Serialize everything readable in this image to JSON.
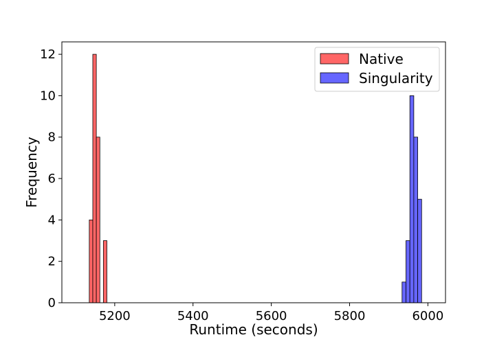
{
  "chart_data": {
    "type": "bar",
    "title": "",
    "xlabel": "Runtime (seconds)",
    "ylabel": "Frequency",
    "xlim": [
      5065,
      6045
    ],
    "ylim": [
      0,
      12.6
    ],
    "xticks": [
      5200,
      5400,
      5600,
      5800,
      6000
    ],
    "yticks": [
      0,
      2,
      4,
      6,
      8,
      10,
      12
    ],
    "grid": false,
    "legend_position": "top-right",
    "series": [
      {
        "name": "Native",
        "color": "#ff6666",
        "bins": [
          {
            "x0": 5135,
            "x1": 5144,
            "count": 4
          },
          {
            "x0": 5144,
            "x1": 5153,
            "count": 12
          },
          {
            "x0": 5153,
            "x1": 5162,
            "count": 8
          },
          {
            "x0": 5162,
            "x1": 5171,
            "count": 0
          },
          {
            "x0": 5171,
            "x1": 5180,
            "count": 3
          }
        ]
      },
      {
        "name": "Singularity",
        "color": "#6666ff",
        "bins": [
          {
            "x0": 5934,
            "x1": 5944,
            "count": 1
          },
          {
            "x0": 5944,
            "x1": 5954,
            "count": 3
          },
          {
            "x0": 5954,
            "x1": 5964,
            "count": 10
          },
          {
            "x0": 5964,
            "x1": 5974,
            "count": 8
          },
          {
            "x0": 5974,
            "x1": 5984,
            "count": 5
          }
        ]
      }
    ]
  }
}
